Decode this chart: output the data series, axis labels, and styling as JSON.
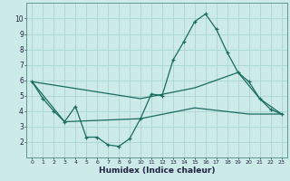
{
  "xlabel": "Humidex (Indice chaleur)",
  "background_color": "#cceae7",
  "grid_color": "#aad4d0",
  "line_color": "#1a6b60",
  "xlim": [
    -0.5,
    23.5
  ],
  "ylim": [
    1,
    11
  ],
  "yticks": [
    2,
    3,
    4,
    5,
    6,
    7,
    8,
    9,
    10
  ],
  "xticks": [
    0,
    1,
    2,
    3,
    4,
    5,
    6,
    7,
    8,
    9,
    10,
    11,
    12,
    13,
    14,
    15,
    16,
    17,
    18,
    19,
    20,
    21,
    22,
    23
  ],
  "line1_x": [
    0,
    1,
    2,
    3,
    4,
    5,
    6,
    7,
    8,
    9,
    10,
    11,
    12,
    13,
    14,
    15,
    16,
    17,
    18,
    19,
    20,
    21,
    22,
    23
  ],
  "line1_y": [
    5.9,
    4.8,
    4.0,
    3.3,
    4.3,
    2.3,
    2.3,
    1.8,
    1.7,
    2.2,
    3.5,
    5.1,
    5.0,
    7.3,
    8.5,
    9.8,
    10.3,
    9.3,
    7.8,
    6.5,
    5.9,
    4.8,
    4.1,
    3.8
  ],
  "line2_x": [
    0,
    10,
    15,
    19,
    21,
    23
  ],
  "line2_y": [
    5.9,
    4.8,
    5.5,
    6.5,
    4.8,
    3.8
  ],
  "line3_x": [
    0,
    3,
    10,
    15,
    20,
    23
  ],
  "line3_y": [
    5.9,
    3.3,
    3.5,
    4.2,
    3.8,
    3.8
  ]
}
